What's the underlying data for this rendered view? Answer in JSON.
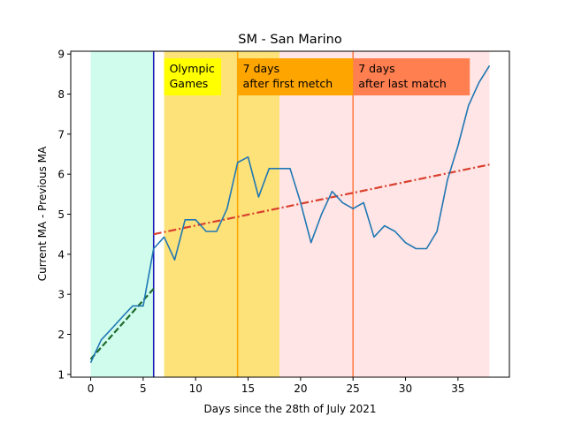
{
  "chart_data": {
    "type": "line",
    "title": "SM - San Marino",
    "xlabel": "Days since the 28th of July 2021",
    "ylabel": "Current MA - Previous MA",
    "xlim": [
      -1.9,
      39.9
    ],
    "ylim": [
      0.93,
      9.07
    ],
    "xticks": [
      0,
      5,
      10,
      15,
      20,
      25,
      30,
      35
    ],
    "yticks": [
      1,
      2,
      3,
      4,
      5,
      6,
      7,
      8,
      9
    ],
    "grid": false,
    "shaded_regions": [
      {
        "x0": 0,
        "x1": 6,
        "color": "#d0fced"
      },
      {
        "x0": 7,
        "x1": 18,
        "color": "#fde27a"
      },
      {
        "x0": 18,
        "x1": 38,
        "color": "#ffe5e5"
      }
    ],
    "vertical_lines": [
      {
        "x": 6,
        "color": "#1a1ab8"
      },
      {
        "x": 14,
        "color": "#ffa500"
      },
      {
        "x": 25,
        "color": "#ff7f50"
      }
    ],
    "annotations": [
      {
        "lines": [
          "Olympic",
          "Games"
        ],
        "x": 7,
        "bg": "#ffff00"
      },
      {
        "lines": [
          "7 days",
          "after first metch"
        ],
        "x": 14,
        "bg": "#ffa500"
      },
      {
        "lines": [
          "7 days",
          "after last match"
        ],
        "x": 25,
        "bg": "#ff7f50"
      }
    ],
    "series": [
      {
        "color": "#1f77b4",
        "x": [
          0,
          1,
          2,
          3,
          4,
          5,
          6,
          7,
          8,
          9,
          10,
          11,
          12,
          13,
          14,
          15,
          16,
          17,
          18,
          19,
          20,
          21,
          22,
          23,
          24,
          25,
          26,
          27,
          28,
          29,
          30,
          31,
          32,
          33,
          34,
          35,
          36,
          37,
          38
        ],
        "y": [
          1.29,
          1.86,
          2.14,
          2.43,
          2.71,
          2.71,
          4.14,
          4.43,
          3.86,
          4.86,
          4.86,
          4.57,
          4.57,
          5.14,
          6.29,
          6.43,
          5.43,
          6.14,
          6.14,
          6.14,
          5.29,
          4.29,
          5.0,
          5.57,
          5.29,
          5.14,
          5.29,
          4.43,
          4.71,
          4.57,
          4.29,
          4.14,
          4.14,
          4.57,
          5.86,
          6.71,
          7.71,
          8.29,
          8.71
        ]
      }
    ],
    "trend_lines": [
      {
        "x0": 0,
        "y0": 1.38,
        "x1": 6,
        "y1": 3.14,
        "color": "#1d6a2a",
        "style": "dashed"
      },
      {
        "x0": 6,
        "y0": 4.5,
        "x1": 38,
        "y1": 6.24,
        "color": "#d9402f",
        "style": "dashdot"
      }
    ]
  }
}
